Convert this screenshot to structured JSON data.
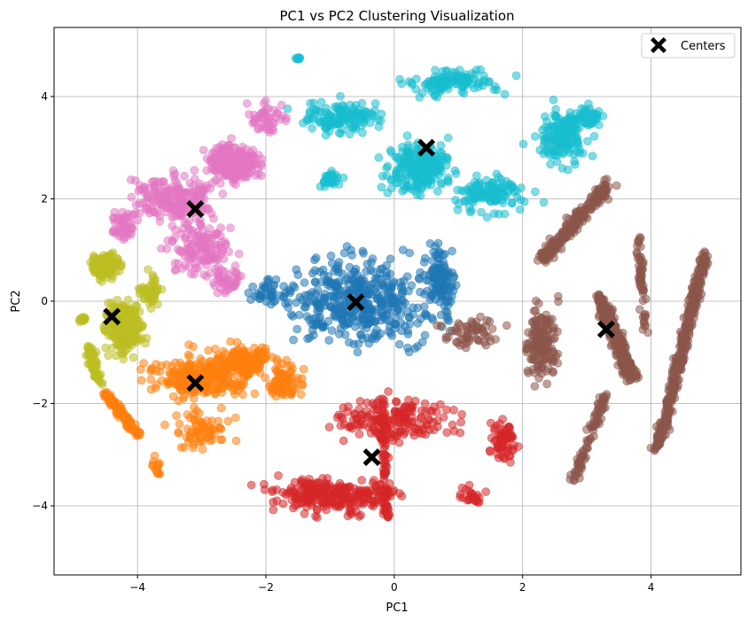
{
  "chart_data": {
    "type": "scatter",
    "title": "PC1 vs PC2 Clustering Visualization",
    "xlabel": "PC1",
    "ylabel": "PC2",
    "xlim": [
      -5.3,
      5.4
    ],
    "ylim": [
      -5.35,
      5.35
    ],
    "xticks": [
      -4,
      -2,
      0,
      2,
      4
    ],
    "yticks": [
      -4,
      -2,
      0,
      2,
      4
    ],
    "xtick_labels": [
      "−4",
      "−2",
      "0",
      "2",
      "4"
    ],
    "ytick_labels": [
      "−4",
      "−2",
      "0",
      "2",
      "4"
    ],
    "grid": true,
    "legend_position": "top-right",
    "legend_label": "Centers",
    "center_color": "#000000",
    "point_alpha": 0.55,
    "clusters": [
      {
        "color": "#1f77b4",
        "center": [
          -0.6,
          -0.02
        ]
      },
      {
        "color": "#ff7f0e",
        "center": [
          -3.1,
          -1.6
        ]
      },
      {
        "color": "#d62728",
        "center": [
          -0.35,
          -3.05
        ]
      },
      {
        "color": "#8c564b",
        "center": [
          3.3,
          -0.55
        ]
      },
      {
        "color": "#e377c2",
        "center": [
          -3.1,
          1.8
        ]
      },
      {
        "color": "#bcbd22",
        "center": [
          -4.4,
          -0.3
        ]
      },
      {
        "color": "#17becf",
        "center": [
          0.5,
          3.0
        ]
      }
    ]
  }
}
